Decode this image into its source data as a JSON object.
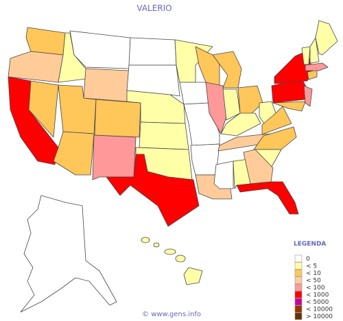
{
  "title": "VALERIO",
  "legend": {
    "title": "LEGENDA",
    "items": [
      {
        "label": "0",
        "color": "#ffffff"
      },
      {
        "label": "< 5",
        "color": "#ffffa8"
      },
      {
        "label": "< 10",
        "color": "#ffc65a"
      },
      {
        "label": "< 50",
        "color": "#ffcc99"
      },
      {
        "label": "< 100",
        "color": "#ff9999"
      },
      {
        "label": "< 1000",
        "color": "#ff0000"
      },
      {
        "label": "< 5000",
        "color": "#cc0099"
      },
      {
        "label": "< 10000",
        "color": "#993300"
      },
      {
        "label": "> 10000",
        "color": "#663300"
      }
    ]
  },
  "footer": "© www.gens.info"
}
